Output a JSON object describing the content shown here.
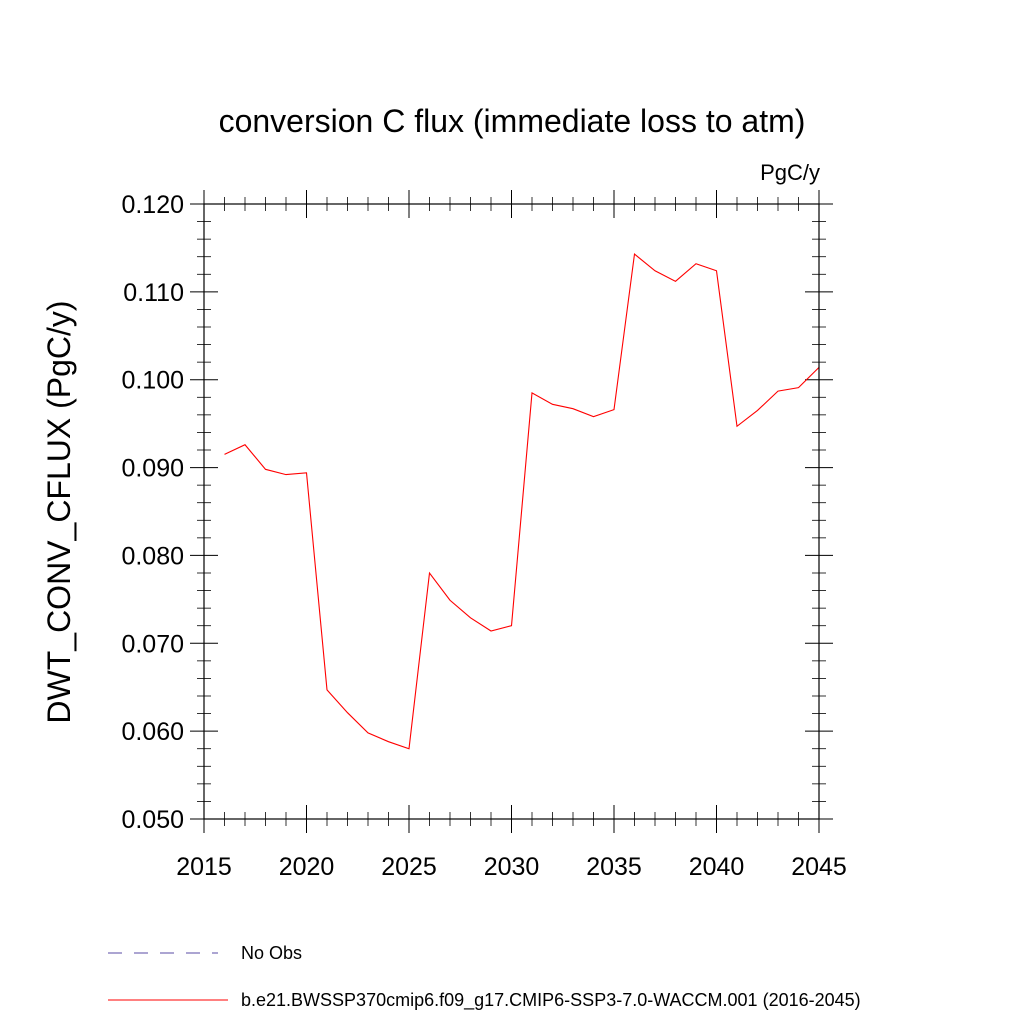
{
  "chart_data": {
    "type": "line",
    "title": "conversion C flux (immediate loss to atm)",
    "units": "PgC/y",
    "ylabel": "DWT_CONV_CFLUX  (PgC/y)",
    "xlabel": "",
    "xlim": [
      2015,
      2045
    ],
    "ylim": [
      0.05,
      0.12
    ],
    "x_ticks": [
      2015,
      2020,
      2025,
      2030,
      2035,
      2040,
      2045
    ],
    "x_tick_labels": [
      "2015",
      "2020",
      "2025",
      "2030",
      "2035",
      "2040",
      "2045"
    ],
    "y_ticks": [
      0.05,
      0.06,
      0.07,
      0.08,
      0.09,
      0.1,
      0.11,
      0.12
    ],
    "y_tick_labels": [
      "0.050",
      "0.060",
      "0.070",
      "0.080",
      "0.090",
      "0.100",
      "0.110",
      "0.120"
    ],
    "series": [
      {
        "name": "b.e21.BWSSP370cmip6.f09_g17.CMIP6-SSP3-7.0-WACCM.001 (2016-2045)",
        "color": "#ff0000",
        "x": [
          2016,
          2017,
          2018,
          2019,
          2020,
          2021,
          2022,
          2023,
          2024,
          2025,
          2026,
          2027,
          2028,
          2029,
          2030,
          2031,
          2032,
          2033,
          2034,
          2035,
          2036,
          2037,
          2038,
          2039,
          2040,
          2041,
          2042,
          2043,
          2044,
          2045
        ],
        "values": [
          0.0915,
          0.0926,
          0.0898,
          0.0892,
          0.0894,
          0.0647,
          0.0621,
          0.0598,
          0.0588,
          0.058,
          0.078,
          0.0749,
          0.0729,
          0.0714,
          0.072,
          0.0985,
          0.0972,
          0.0967,
          0.0958,
          0.0966,
          0.1143,
          0.1124,
          0.1112,
          0.1132,
          0.1124,
          0.0947,
          0.0965,
          0.0987,
          0.0991,
          0.1014
        ]
      }
    ],
    "legend": [
      {
        "label": "No Obs",
        "style": "dashed",
        "color": "#7a6fb8"
      },
      {
        "label": "b.e21.BWSSP370cmip6.f09_g17.CMIP6-SSP3-7.0-WACCM.001 (2016-2045)",
        "style": "solid",
        "color": "#ff0000"
      }
    ]
  }
}
